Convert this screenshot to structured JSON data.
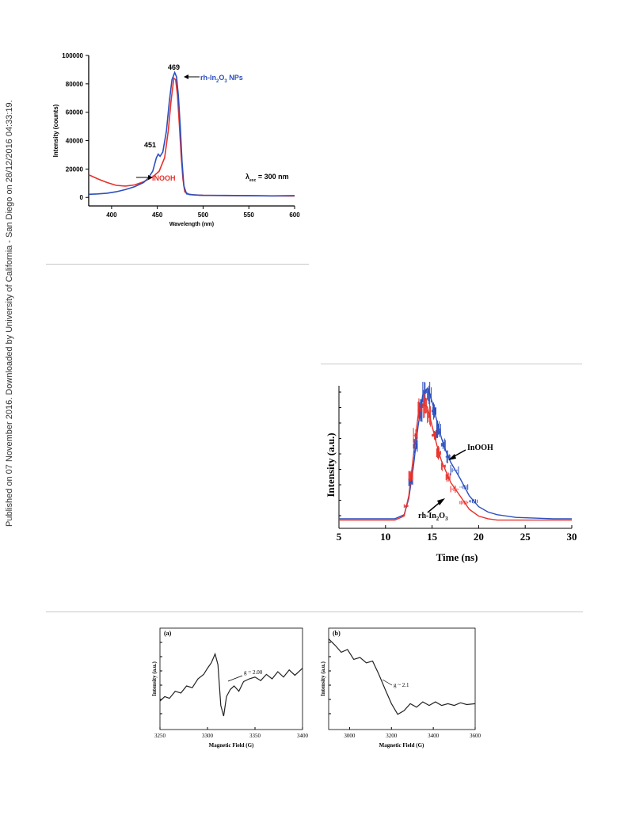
{
  "side_note": "Published on 07 November 2016. Downloaded by University of California - San Diego on 28/12/2016 04:33:19.",
  "colors": {
    "red": "#e8302a",
    "blue": "#2c4fbe",
    "black": "#222222",
    "rule": "#c8c8c8"
  },
  "chart_data": [
    {
      "type": "line",
      "xlabel": "Wavelength (nm)",
      "ylabel": "Intensity (counts)",
      "xlim": [
        375,
        600
      ],
      "ylim": [
        -6000,
        100000
      ],
      "xticks": [
        400,
        450,
        500,
        550,
        600
      ],
      "yticks": [
        0,
        20000,
        40000,
        60000,
        80000,
        100000
      ],
      "annotations": {
        "peak_469": "469",
        "peak_451": "451",
        "label_rh_main": "rh-In",
        "label_rh_sub2": "2",
        "label_rh_o": "O",
        "label_rh_sub3": "3",
        "label_rh_tail": " NPs",
        "label_inooh": "INOOH",
        "lambda": "λ",
        "lambda_sub": "exc",
        "lambda_value": " = 300 nm"
      },
      "series": [
        {
          "color": "#e8302a",
          "x": [
            375,
            385,
            395,
            405,
            415,
            425,
            435,
            445,
            452,
            458,
            462,
            465,
            468,
            470,
            472,
            474,
            476,
            478,
            480,
            485,
            500,
            525,
            550,
            575,
            600
          ],
          "y": [
            16000,
            13000,
            10500,
            8500,
            8000,
            8800,
            11000,
            14500,
            18500,
            28000,
            47000,
            68000,
            84000,
            83000,
            72000,
            52000,
            30000,
            13000,
            4000,
            2000,
            1500,
            1300,
            1300,
            1100,
            1000
          ]
        },
        {
          "color": "#2c4fbe",
          "x": [
            375,
            385,
            395,
            405,
            415,
            425,
            435,
            440,
            445,
            449,
            451,
            453,
            456,
            460,
            463,
            466,
            469,
            471,
            473,
            475,
            477,
            479,
            482,
            490,
            500,
            525,
            550,
            575,
            600
          ],
          "y": [
            2200,
            2500,
            3000,
            4000,
            5500,
            7500,
            10500,
            13500,
            18500,
            28000,
            30500,
            29000,
            32000,
            47000,
            67000,
            83000,
            88000,
            85000,
            72000,
            50000,
            25000,
            8000,
            2500,
            1800,
            1500,
            1400,
            1200,
            1100,
            1300
          ]
        }
      ]
    },
    {
      "type": "line",
      "xlabel": "Time (ns)",
      "ylabel": "Intensity (a.u.)",
      "xlim": [
        5,
        30
      ],
      "xticks": [
        5,
        10,
        15,
        20,
        25,
        30
      ],
      "legend_labels": {
        "inooh": "InOOH",
        "rh_main": "rh-In",
        "rh_sub2": "2",
        "rh_o": "O",
        "rh_sub3": "3"
      },
      "series": [
        {
          "color": "#2c4fbe",
          "x": [
            5,
            11,
            12,
            12.5,
            13,
            13.5,
            14,
            14.5,
            15,
            15.5,
            16,
            16.5,
            17,
            18,
            19,
            20,
            21,
            22,
            24,
            26,
            28,
            30
          ],
          "y": [
            0.03,
            0.03,
            0.06,
            0.18,
            0.42,
            0.72,
            0.95,
            1.0,
            0.9,
            0.76,
            0.63,
            0.53,
            0.45,
            0.33,
            0.2,
            0.12,
            0.08,
            0.06,
            0.04,
            0.035,
            0.03,
            0.03
          ]
        },
        {
          "color": "#e8302a",
          "x": [
            5,
            11,
            12,
            12.5,
            13,
            13.5,
            14,
            14.5,
            15,
            15.5,
            16,
            16.5,
            17,
            18,
            19,
            20,
            21,
            22,
            24,
            26,
            28,
            30
          ],
          "y": [
            0.02,
            0.02,
            0.05,
            0.2,
            0.5,
            0.8,
            0.88,
            0.86,
            0.72,
            0.58,
            0.46,
            0.38,
            0.3,
            0.2,
            0.1,
            0.05,
            0.03,
            0.02,
            0.02,
            0.02,
            0.02,
            0.02
          ]
        }
      ]
    },
    {
      "type": "line",
      "panel": "(a)",
      "xlabel": "Magnetic Field (G)",
      "ylabel": "Intensity (a.u.)",
      "xlim": [
        3250,
        3400
      ],
      "xticks": [
        3250,
        3300,
        3350,
        3400
      ],
      "annotation": "g = 2.00",
      "series": [
        {
          "color": "#222222",
          "x": [
            3250,
            3255,
            3260,
            3266,
            3272,
            3278,
            3284,
            3290,
            3296,
            3300,
            3304,
            3308,
            3311,
            3314,
            3317,
            3320,
            3324,
            3328,
            3333,
            3338,
            3344,
            3350,
            3356,
            3362,
            3368,
            3374,
            3380,
            3386,
            3392,
            3398,
            3400
          ],
          "y": [
            0.25,
            0.3,
            0.28,
            0.36,
            0.34,
            0.42,
            0.4,
            0.5,
            0.55,
            0.62,
            0.68,
            0.78,
            0.66,
            0.2,
            0.08,
            0.3,
            0.38,
            0.42,
            0.36,
            0.47,
            0.5,
            0.52,
            0.48,
            0.55,
            0.5,
            0.58,
            0.52,
            0.6,
            0.54,
            0.6,
            0.62
          ]
        }
      ]
    },
    {
      "type": "line",
      "panel": "(b)",
      "xlabel": "Magnetic Field (G)",
      "ylabel": "Intensity (a.u.)",
      "xlim": [
        2900,
        3600
      ],
      "xticks": [
        3000,
        3200,
        3400,
        3600
      ],
      "annotation": "g ~ 2.1",
      "series": [
        {
          "color": "#222222",
          "x": [
            2900,
            2930,
            2960,
            2990,
            3020,
            3050,
            3080,
            3110,
            3140,
            3170,
            3200,
            3230,
            3260,
            3290,
            3320,
            3350,
            3380,
            3410,
            3440,
            3470,
            3500,
            3530,
            3560,
            3600
          ],
          "y": [
            0.95,
            0.88,
            0.8,
            0.83,
            0.72,
            0.74,
            0.68,
            0.7,
            0.55,
            0.38,
            0.22,
            0.1,
            0.14,
            0.22,
            0.18,
            0.24,
            0.2,
            0.24,
            0.2,
            0.22,
            0.2,
            0.23,
            0.21,
            0.22
          ]
        }
      ]
    }
  ]
}
